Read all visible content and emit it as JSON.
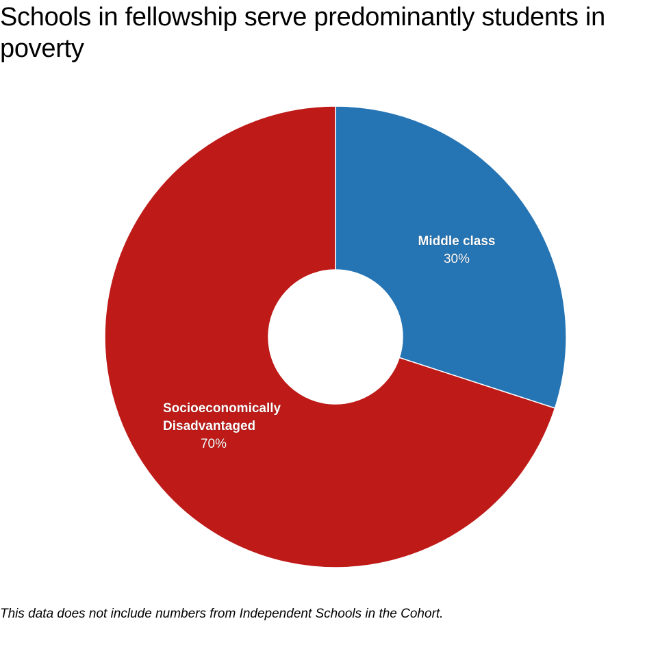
{
  "chart_data": {
    "type": "pie",
    "title": "Schools in fellowship serve predominantly students in poverty",
    "donut": true,
    "slices": [
      {
        "label_lines": [
          "Middle class"
        ],
        "value": 30,
        "value_label": "30%",
        "color": "#2574b4"
      },
      {
        "label_lines": [
          "Socioeconomically",
          "Disadvantaged"
        ],
        "value": 70,
        "value_label": "70%",
        "color": "#be1a17"
      }
    ],
    "start_angle": "12 o'clock",
    "direction": "clockwise"
  },
  "note": "This data does not include numbers from Independent Schools in the Cohort."
}
